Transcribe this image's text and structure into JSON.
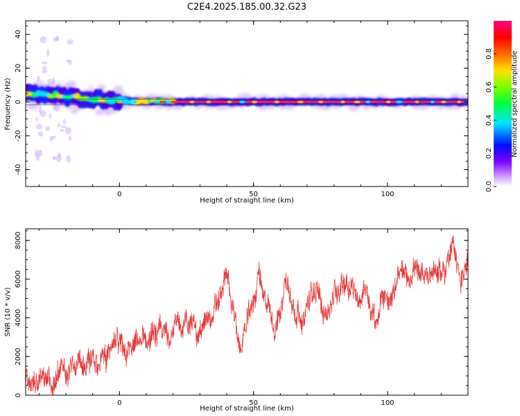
{
  "title": "C2E4.2025.185.00.32.G23",
  "colors": {
    "snr_line": "#e43a3a",
    "frame": "#000000"
  },
  "chart_data": [
    {
      "type": "heatmap",
      "name": "spectrogram",
      "xlabel": "Height of straight line (km)",
      "ylabel": "Frequency (Hz)",
      "xlim": [
        -35,
        130
      ],
      "ylim": [
        -50,
        48
      ],
      "xticks": [
        0,
        50,
        100
      ],
      "yticks": [
        -40,
        -20,
        0,
        20,
        40
      ],
      "ridge": [
        {
          "x": -35,
          "y": 5
        },
        {
          "x": -30,
          "y": 4.5
        },
        {
          "x": -25,
          "y": 4
        },
        {
          "x": -20,
          "y": 3
        },
        {
          "x": -15,
          "y": 2.5
        },
        {
          "x": -10,
          "y": 2
        },
        {
          "x": -5,
          "y": 1.5
        },
        {
          "x": 0,
          "y": 1
        },
        {
          "x": 5,
          "y": 0.6
        },
        {
          "x": 10,
          "y": 0.4
        },
        {
          "x": 15,
          "y": 0.2
        },
        {
          "x": 20,
          "y": 0
        },
        {
          "x": 130,
          "y": 0
        }
      ],
      "colorbar": {
        "label": "Normalized spectral amplitude",
        "range": [
          0,
          1
        ],
        "ticks": [
          "0.0",
          "0.2",
          "0.4",
          "0.6",
          "0.8"
        ]
      }
    },
    {
      "type": "line",
      "name": "snr",
      "xlabel": "Height of straight line (km)",
      "ylabel": "SNR (10 * v/v)",
      "xlim": [
        -35,
        130
      ],
      "ylim": [
        0,
        8600
      ],
      "xticks": [
        0,
        50,
        100
      ],
      "yticks": [
        0,
        2000,
        4000,
        6000,
        8000
      ],
      "trend": [
        {
          "x": -35,
          "y": 600
        },
        {
          "x": -30,
          "y": 800
        },
        {
          "x": -25,
          "y": 500
        },
        {
          "x": -20,
          "y": 1500
        },
        {
          "x": -15,
          "y": 1300
        },
        {
          "x": -10,
          "y": 1700
        },
        {
          "x": -5,
          "y": 2000
        },
        {
          "x": 0,
          "y": 2600
        },
        {
          "x": 5,
          "y": 2400
        },
        {
          "x": 10,
          "y": 2900
        },
        {
          "x": 15,
          "y": 3100
        },
        {
          "x": 20,
          "y": 3400
        },
        {
          "x": 25,
          "y": 3800
        },
        {
          "x": 30,
          "y": 3300
        },
        {
          "x": 35,
          "y": 4200
        },
        {
          "x": 38,
          "y": 5200
        },
        {
          "x": 40,
          "y": 6200
        },
        {
          "x": 43,
          "y": 4000
        },
        {
          "x": 45,
          "y": 2200
        },
        {
          "x": 48,
          "y": 4000
        },
        {
          "x": 50,
          "y": 4800
        },
        {
          "x": 52,
          "y": 6400
        },
        {
          "x": 55,
          "y": 4500
        },
        {
          "x": 58,
          "y": 3200
        },
        {
          "x": 60,
          "y": 4400
        },
        {
          "x": 62,
          "y": 6000
        },
        {
          "x": 65,
          "y": 4600
        },
        {
          "x": 68,
          "y": 3800
        },
        {
          "x": 70,
          "y": 4600
        },
        {
          "x": 73,
          "y": 5400
        },
        {
          "x": 75,
          "y": 4800
        },
        {
          "x": 78,
          "y": 4300
        },
        {
          "x": 80,
          "y": 5200
        },
        {
          "x": 83,
          "y": 5800
        },
        {
          "x": 85,
          "y": 6000
        },
        {
          "x": 88,
          "y": 5400
        },
        {
          "x": 90,
          "y": 4800
        },
        {
          "x": 92,
          "y": 5600
        },
        {
          "x": 94,
          "y": 4200
        },
        {
          "x": 96,
          "y": 3400
        },
        {
          "x": 98,
          "y": 5200
        },
        {
          "x": 100,
          "y": 5000
        },
        {
          "x": 103,
          "y": 5600
        },
        {
          "x": 105,
          "y": 6200
        },
        {
          "x": 108,
          "y": 6000
        },
        {
          "x": 110,
          "y": 6800
        },
        {
          "x": 112,
          "y": 5800
        },
        {
          "x": 115,
          "y": 6400
        },
        {
          "x": 118,
          "y": 6500
        },
        {
          "x": 120,
          "y": 6200
        },
        {
          "x": 123,
          "y": 7200
        },
        {
          "x": 125,
          "y": 7600
        },
        {
          "x": 127,
          "y": 6000
        },
        {
          "x": 130,
          "y": 6600
        }
      ]
    }
  ]
}
